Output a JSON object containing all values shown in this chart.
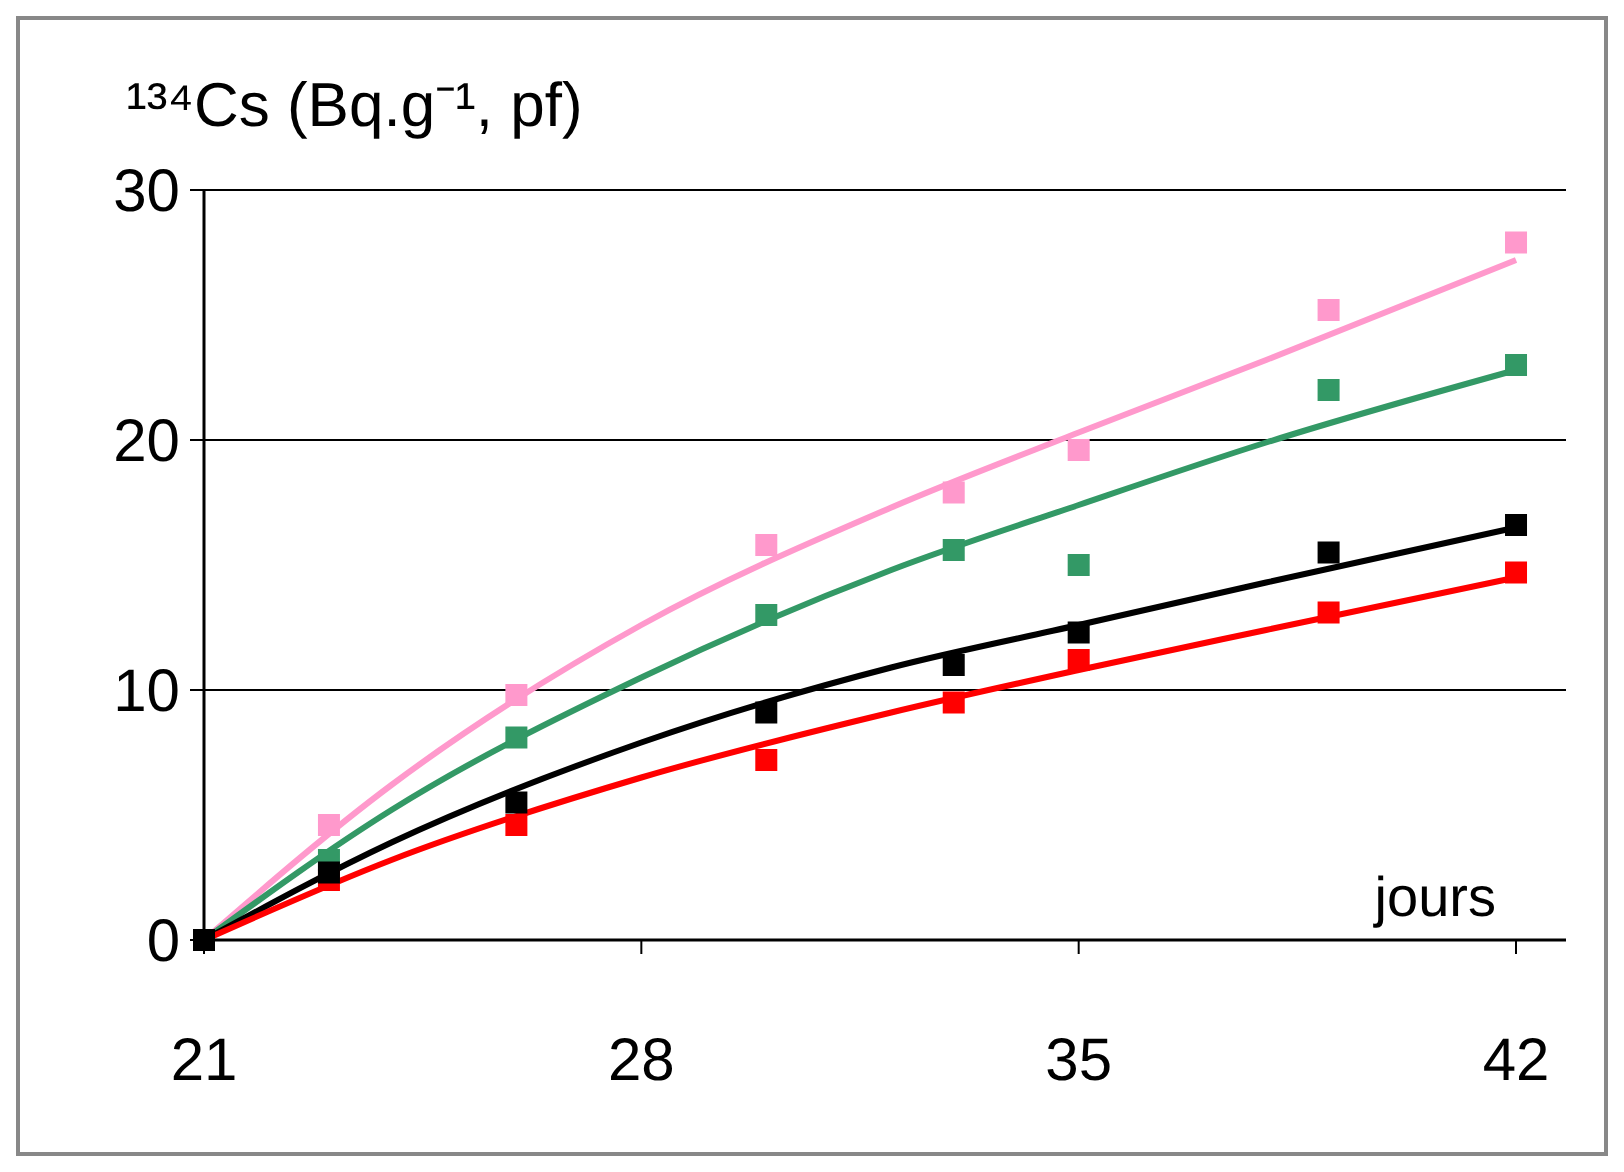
{
  "chart_data": {
    "type": "scatter",
    "title": "¹³⁴Cs (Bq.g⁻¹, pf)",
    "xlabel": "jours",
    "xlim": [
      21,
      42.8
    ],
    "xticks": [
      21,
      28,
      35,
      42
    ],
    "ylim": [
      0,
      30
    ],
    "yticks": [
      0,
      10,
      20,
      30
    ],
    "grid": "y",
    "marker": "square",
    "series": [
      {
        "type": "line",
        "marker": "none",
        "color": "#ff99cc",
        "x": [
          21,
          24,
          28,
          32,
          35,
          38,
          42
        ],
        "values": [
          0,
          6.2,
          12.6,
          17.3,
          20.3,
          23.2,
          27.2
        ]
      },
      {
        "type": "line",
        "marker": "none",
        "color": "#339966",
        "x": [
          21,
          24,
          28,
          32,
          35,
          38,
          42
        ],
        "values": [
          0,
          5.2,
          10.5,
          14.8,
          17.4,
          19.9,
          22.8
        ]
      },
      {
        "type": "line",
        "marker": "none",
        "color": "#000000",
        "x": [
          21,
          24,
          28,
          32,
          35,
          38,
          42
        ],
        "values": [
          0,
          3.9,
          7.9,
          10.9,
          12.6,
          14.3,
          16.5
        ]
      },
      {
        "type": "line",
        "marker": "none",
        "color": "#ff0000",
        "x": [
          21,
          24,
          28,
          32,
          35,
          38,
          42
        ],
        "values": [
          0,
          3.2,
          6.5,
          9.1,
          10.8,
          12.4,
          14.5
        ]
      },
      {
        "color": "#ff99cc",
        "x": [
          23,
          26,
          30,
          33,
          35,
          39,
          42
        ],
        "values": [
          4.6,
          9.8,
          15.8,
          17.9,
          19.6,
          25.2,
          27.9
        ]
      },
      {
        "color": "#339966",
        "x": [
          23,
          26,
          30,
          33,
          35,
          39,
          42
        ],
        "values": [
          3.2,
          8.1,
          13.0,
          15.6,
          15.0,
          22.0,
          23.0
        ]
      },
      {
        "color": "#ff0000",
        "x": [
          23,
          26,
          30,
          33,
          35,
          39,
          42
        ],
        "values": [
          2.4,
          4.6,
          7.2,
          9.5,
          11.2,
          13.1,
          14.7
        ]
      },
      {
        "color": "#000000",
        "x": [
          21,
          23,
          26,
          30,
          33,
          35,
          39,
          42
        ],
        "values": [
          0,
          2.7,
          5.5,
          9.1,
          11.0,
          12.3,
          15.5,
          16.6
        ]
      }
    ]
  }
}
